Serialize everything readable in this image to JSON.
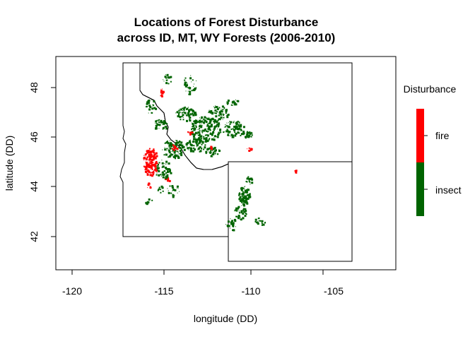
{
  "title_line1": "Locations of Forest Disturbance",
  "title_line2": "across ID, MT, WY Forests (2006-2010)",
  "xlabel": "longitude (DD)",
  "ylabel": "latitude (DD)",
  "x_ticks": [
    "-120",
    "-115",
    "-110",
    "-105"
  ],
  "y_ticks": [
    "42",
    "44",
    "46",
    "48"
  ],
  "legend": {
    "title": "Disturbance",
    "items": [
      {
        "label": "fire",
        "color": "#ff0000"
      },
      {
        "label": "insect",
        "color": "#006400"
      }
    ]
  },
  "chart_data": {
    "type": "map",
    "title": "Locations of Forest Disturbance across ID, MT, WY Forests (2006-2010)",
    "xlabel": "longitude (DD)",
    "ylabel": "latitude (DD)",
    "xlim": [
      -121,
      -102
    ],
    "ylim": [
      40.7,
      49.2
    ],
    "legend_position": "right",
    "categories": [
      "fire",
      "insect"
    ],
    "colors": {
      "fire": "#ff0000",
      "insect": "#006400"
    }
  }
}
